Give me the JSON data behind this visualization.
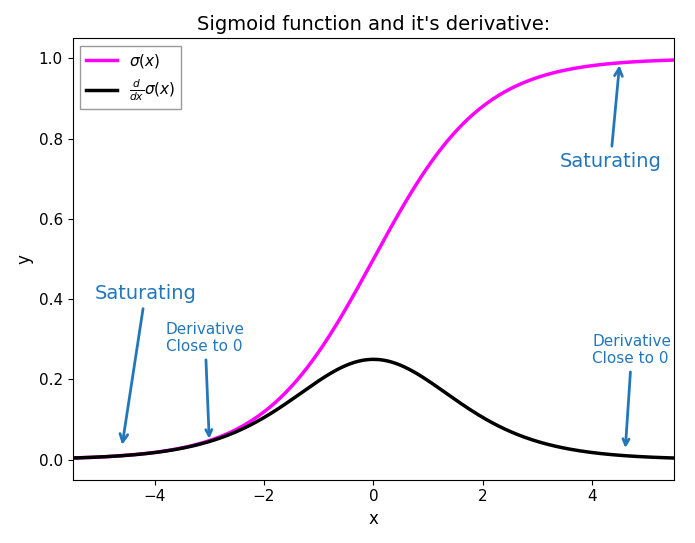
{
  "title": "Sigmoid function and it's derivative:",
  "xlabel": "x",
  "ylabel": "y",
  "xlim": [
    -5.5,
    5.5
  ],
  "ylim": [
    -0.05,
    1.05
  ],
  "sigmoid_color": "#FF00FF",
  "derivative_color": "#000000",
  "annotation_color": "#2277BB",
  "background_color": "#ffffff",
  "title_fontsize": 14,
  "axis_label_fontsize": 12,
  "tick_fontsize": 11,
  "line_width": 2.5,
  "legend_fontsize": 11
}
